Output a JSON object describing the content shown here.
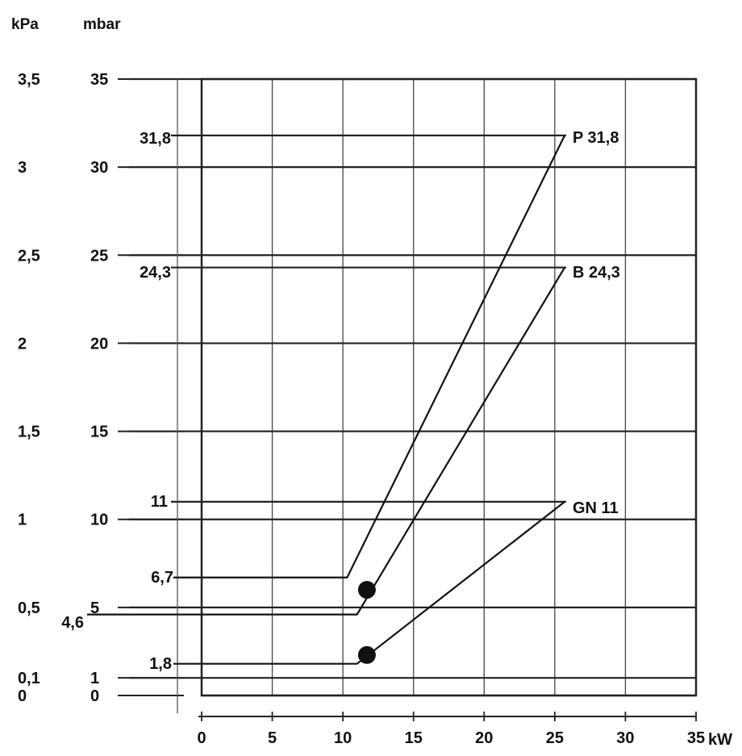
{
  "chart_data": {
    "type": "line",
    "x_unit": "kW",
    "y_units": [
      "kPa",
      "mbar"
    ],
    "xlim": [
      0,
      35
    ],
    "ylim": [
      0,
      35
    ],
    "x_ticks": [
      0,
      5,
      10,
      15,
      20,
      25,
      30,
      35
    ],
    "x_tick_labels": [
      "0",
      "5",
      "10",
      "15",
      "20",
      "25",
      "30",
      "35"
    ],
    "y_ticks": [
      {
        "mbar": "35",
        "kPa": "3,5",
        "value": 35
      },
      {
        "mbar": "30",
        "kPa": "3",
        "value": 30
      },
      {
        "mbar": "25",
        "kPa": "2,5",
        "value": 25
      },
      {
        "mbar": "20",
        "kPa": "2",
        "value": 20
      },
      {
        "mbar": "15",
        "kPa": "1,5",
        "value": 15
      },
      {
        "mbar": "10",
        "kPa": "1",
        "value": 10
      },
      {
        "mbar": "5",
        "kPa": "0,5",
        "value": 5
      },
      {
        "mbar": "1",
        "kPa": "0,1",
        "value": 1
      },
      {
        "mbar": "0",
        "kPa": "0",
        "value": 0
      }
    ],
    "grid": true,
    "series": [
      {
        "name": "P 31,8",
        "max_label": "31,8",
        "min_label": "6,7",
        "points": [
          [
            0,
            6.7
          ],
          [
            10.3,
            6.7
          ],
          [
            25.7,
            31.8
          ]
        ]
      },
      {
        "name": "B 24,3",
        "max_label": "24,3",
        "min_label": "4,6",
        "points": [
          [
            0,
            4.6
          ],
          [
            11,
            4.6
          ],
          [
            25.7,
            24.3
          ]
        ],
        "marker_at": [
          11.7,
          6.0
        ]
      },
      {
        "name": "GN 11",
        "max_label": "11",
        "min_label": "1,8",
        "points": [
          [
            0,
            1.8
          ],
          [
            11,
            1.8
          ],
          [
            25.7,
            11
          ]
        ],
        "marker_at": [
          11.7,
          2.3
        ]
      }
    ]
  },
  "labels": {
    "kpa_header": "kPa",
    "mbar_header": "mbar",
    "x_unit_label": "kW",
    "curve_p": "P 31,8",
    "curve_b": "B 24,3",
    "curve_gn": "GN 11",
    "ref_p": "31,8",
    "ref_b": "24,3",
    "ref_gn": "11",
    "min_p": "6,7",
    "min_b": "4,6",
    "min_gn": "1,8"
  }
}
